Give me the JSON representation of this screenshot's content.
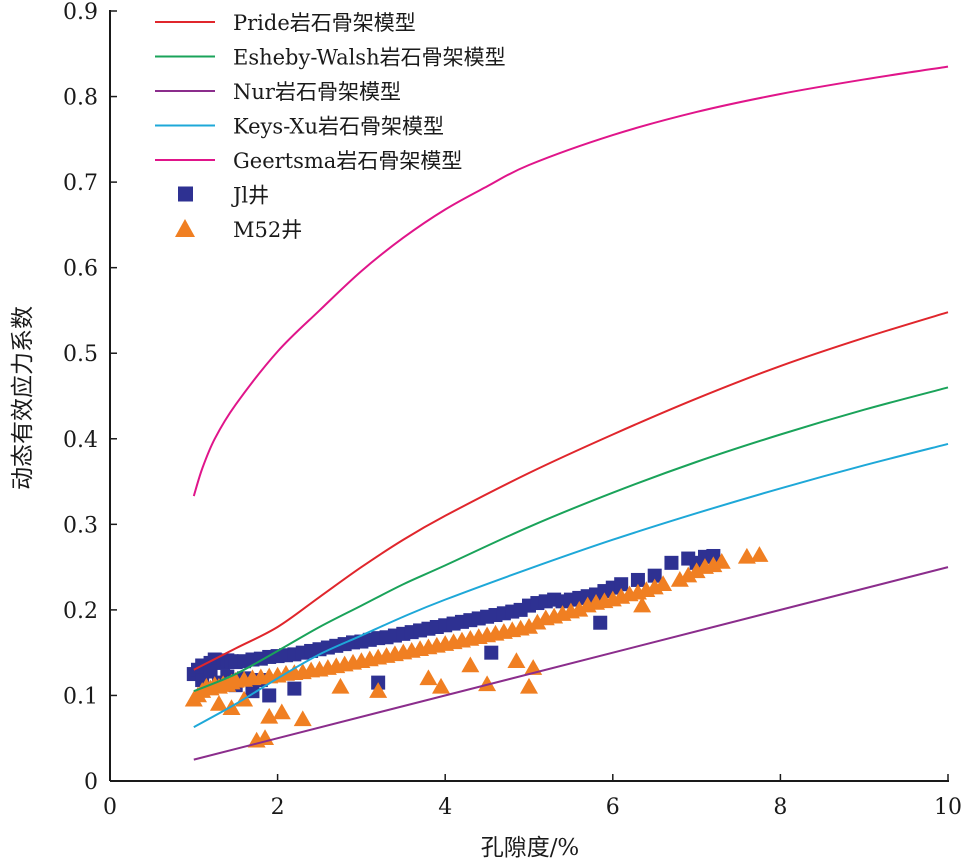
{
  "chart_data": {
    "type": "scatter",
    "title": "",
    "xlabel": "孔隙度/%",
    "ylabel": "动态有效应力系数",
    "xlim": [
      0,
      10
    ],
    "ylim": [
      0,
      0.9
    ],
    "x_ticks": [
      "0",
      "2",
      "4",
      "6",
      "8",
      "10"
    ],
    "y_ticks": [
      "0",
      "0.1",
      "0.2",
      "0.3",
      "0.4",
      "0.5",
      "0.6",
      "0.7",
      "0.8",
      "0.9"
    ],
    "grid": false,
    "legend_position": "top-left",
    "series": [
      {
        "name": "Pride岩石骨架模型",
        "kind": "line",
        "color": "#e0262c",
        "x": [
          1.0,
          1.5,
          2.0,
          2.5,
          3.0,
          3.5,
          4.0,
          5.0,
          6.0,
          7.0,
          8.0,
          9.0,
          10.0
        ],
        "y": [
          0.13,
          0.155,
          0.18,
          0.215,
          0.25,
          0.282,
          0.31,
          0.36,
          0.405,
          0.447,
          0.485,
          0.518,
          0.548
        ]
      },
      {
        "name": "Esheby-Walsh岩石骨架模型",
        "kind": "line",
        "color": "#1aa35a",
        "x": [
          1.0,
          1.5,
          2.0,
          2.5,
          3.0,
          3.5,
          4.0,
          5.0,
          6.0,
          7.0,
          8.0,
          9.0,
          10.0
        ],
        "y": [
          0.105,
          0.125,
          0.152,
          0.18,
          0.205,
          0.23,
          0.252,
          0.297,
          0.337,
          0.373,
          0.405,
          0.434,
          0.46
        ]
      },
      {
        "name": "Nur岩石骨架模型",
        "kind": "line",
        "color": "#8b2d8c",
        "x": [
          1.0,
          10.0
        ],
        "y": [
          0.025,
          0.25
        ]
      },
      {
        "name": "Keys-Xu岩石骨架模型",
        "kind": "line",
        "color": "#1ea8d8",
        "x": [
          1.0,
          1.5,
          2.0,
          2.5,
          3.0,
          3.5,
          4.0,
          5.0,
          6.0,
          7.0,
          8.0,
          9.0,
          10.0
        ],
        "y": [
          0.063,
          0.09,
          0.12,
          0.148,
          0.17,
          0.192,
          0.212,
          0.248,
          0.282,
          0.313,
          0.342,
          0.369,
          0.394
        ]
      },
      {
        "name": "Geertsma岩石骨架模型",
        "kind": "line",
        "color": "#e0158a",
        "x": [
          1.0,
          1.1,
          1.25,
          1.5,
          2.0,
          2.5,
          3.0,
          3.5,
          4.0,
          4.5,
          5.0,
          6.0,
          7.0,
          8.0,
          9.0,
          10.0
        ],
        "y": [
          0.333,
          0.365,
          0.4,
          0.44,
          0.502,
          0.55,
          0.596,
          0.635,
          0.668,
          0.695,
          0.72,
          0.755,
          0.782,
          0.803,
          0.82,
          0.835
        ]
      },
      {
        "name": "Jl井",
        "kind": "scatter",
        "marker": "square",
        "color": "#2e3192",
        "x": [
          1.0,
          1.05,
          1.1,
          1.15,
          1.2,
          1.25,
          1.3,
          1.35,
          1.4,
          1.45,
          1.5,
          1.6,
          1.7,
          1.8,
          1.9,
          2.0,
          2.1,
          2.2,
          2.3,
          2.4,
          2.5,
          2.6,
          2.7,
          2.8,
          2.9,
          3.0,
          3.1,
          3.2,
          3.3,
          3.4,
          3.5,
          3.6,
          3.7,
          3.8,
          3.9,
          4.0,
          4.1,
          4.2,
          4.3,
          4.4,
          4.5,
          4.6,
          4.7,
          4.8,
          4.9,
          5.0,
          5.1,
          5.2,
          5.3,
          5.4,
          5.5,
          5.6,
          5.7,
          5.8,
          5.9,
          6.0,
          6.1,
          6.3,
          6.5,
          6.7,
          6.9,
          7.0,
          7.1,
          7.2,
          1.1,
          1.3,
          1.5,
          1.7,
          1.9,
          2.2,
          3.2,
          4.55,
          5.85,
          1.2,
          1.4,
          1.6,
          1.8
        ],
        "y": [
          0.125,
          0.13,
          0.135,
          0.132,
          0.138,
          0.142,
          0.14,
          0.138,
          0.141,
          0.14,
          0.139,
          0.14,
          0.142,
          0.143,
          0.145,
          0.146,
          0.147,
          0.148,
          0.15,
          0.152,
          0.154,
          0.156,
          0.158,
          0.16,
          0.162,
          0.163,
          0.165,
          0.167,
          0.168,
          0.17,
          0.172,
          0.174,
          0.176,
          0.178,
          0.18,
          0.182,
          0.184,
          0.186,
          0.188,
          0.19,
          0.192,
          0.194,
          0.196,
          0.198,
          0.2,
          0.205,
          0.208,
          0.21,
          0.212,
          0.21,
          0.212,
          0.214,
          0.216,
          0.218,
          0.222,
          0.226,
          0.23,
          0.235,
          0.24,
          0.255,
          0.26,
          0.255,
          0.262,
          0.263,
          0.118,
          0.115,
          0.112,
          0.105,
          0.1,
          0.108,
          0.115,
          0.15,
          0.185,
          0.128,
          0.122,
          0.12,
          0.118
        ]
      },
      {
        "name": "M52井",
        "kind": "scatter",
        "marker": "triangle",
        "color": "#f07f22",
        "x": [
          1.0,
          1.05,
          1.1,
          1.15,
          1.2,
          1.25,
          1.3,
          1.35,
          1.4,
          1.45,
          1.5,
          1.6,
          1.7,
          1.8,
          1.9,
          2.0,
          2.1,
          2.2,
          2.3,
          2.4,
          2.5,
          2.6,
          2.7,
          2.8,
          2.9,
          3.0,
          3.1,
          3.2,
          3.3,
          3.4,
          3.5,
          3.6,
          3.7,
          3.8,
          3.9,
          4.0,
          4.1,
          4.2,
          4.3,
          4.4,
          4.5,
          4.6,
          4.7,
          4.8,
          4.9,
          5.0,
          5.1,
          5.2,
          5.3,
          5.4,
          5.5,
          5.6,
          5.7,
          5.8,
          5.9,
          6.0,
          6.1,
          6.2,
          6.3,
          6.4,
          6.5,
          6.6,
          6.8,
          6.9,
          7.0,
          7.1,
          7.2,
          7.3,
          7.6,
          7.75,
          1.75,
          1.85,
          1.9,
          2.05,
          2.3,
          2.75,
          3.2,
          3.8,
          3.95,
          4.3,
          4.5,
          4.85,
          5.0,
          5.05,
          6.35,
          1.3,
          1.45,
          1.6
        ],
        "y": [
          0.095,
          0.1,
          0.105,
          0.11,
          0.108,
          0.112,
          0.11,
          0.113,
          0.112,
          0.115,
          0.117,
          0.118,
          0.12,
          0.121,
          0.122,
          0.123,
          0.125,
          0.126,
          0.127,
          0.129,
          0.13,
          0.132,
          0.134,
          0.136,
          0.138,
          0.14,
          0.142,
          0.144,
          0.146,
          0.148,
          0.15,
          0.152,
          0.154,
          0.156,
          0.158,
          0.16,
          0.162,
          0.164,
          0.166,
          0.168,
          0.17,
          0.172,
          0.174,
          0.176,
          0.178,
          0.18,
          0.185,
          0.19,
          0.192,
          0.195,
          0.198,
          0.2,
          0.205,
          0.208,
          0.21,
          0.212,
          0.215,
          0.218,
          0.22,
          0.223,
          0.226,
          0.23,
          0.235,
          0.24,
          0.245,
          0.25,
          0.252,
          0.256,
          0.262,
          0.264,
          0.047,
          0.05,
          0.075,
          0.08,
          0.072,
          0.11,
          0.105,
          0.12,
          0.11,
          0.135,
          0.113,
          0.14,
          0.11,
          0.132,
          0.205,
          0.09,
          0.085,
          0.095
        ]
      }
    ]
  }
}
